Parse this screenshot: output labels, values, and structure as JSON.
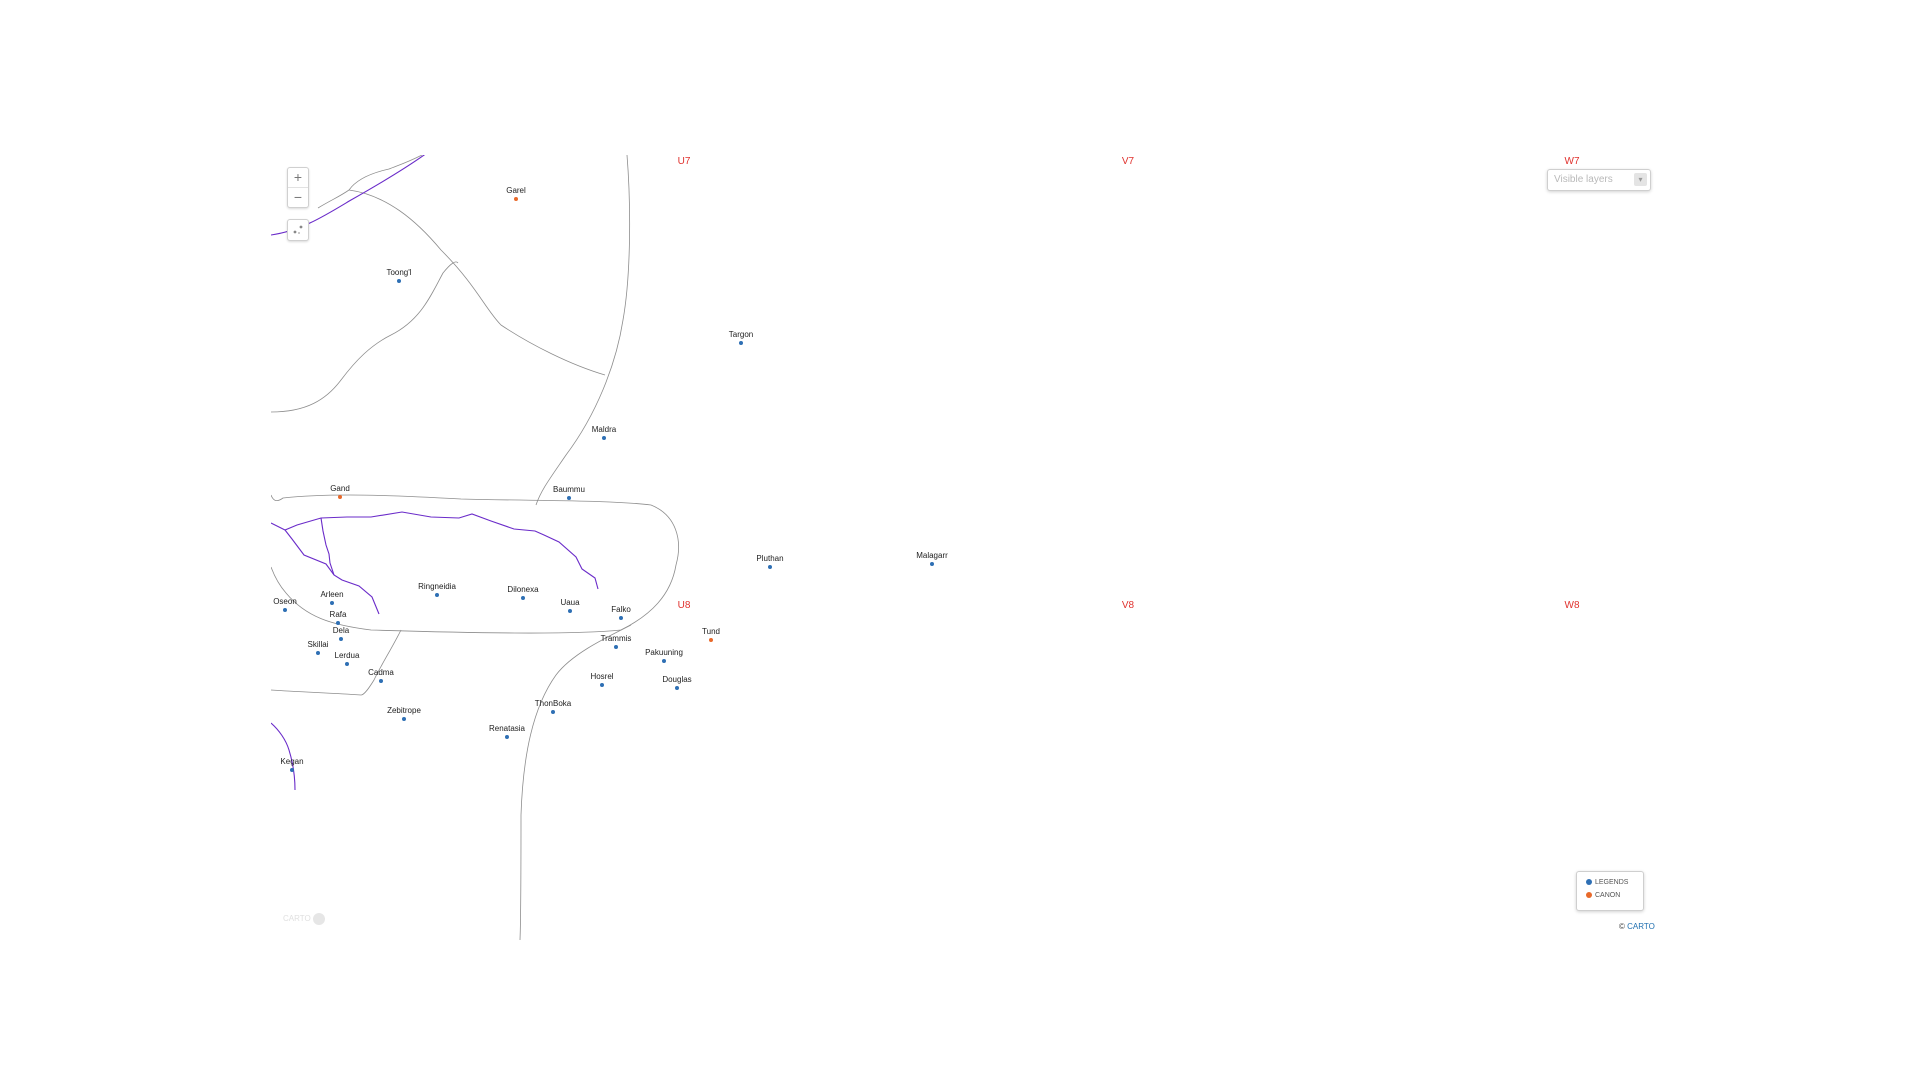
{
  "map": {
    "controls": {
      "zoom_in_label": "+",
      "zoom_out_label": "−",
      "locate_icon": "locate-icon"
    },
    "layers_select": {
      "placeholder": "Visible layers",
      "caret_icon": "chevron-down-icon"
    },
    "legend": {
      "items": [
        {
          "label": "LEGENDS",
          "color": "#2e6fb4"
        },
        {
          "label": "CANON",
          "color": "#e8692a"
        }
      ]
    },
    "attribution": {
      "prefix": "© ",
      "link_text": "CARTO"
    },
    "logo_text": "CARTO",
    "grid_labels": [
      "U7",
      "V7",
      "W7",
      "U8",
      "V8",
      "W8"
    ],
    "colors": {
      "legends": "#2e6fb4",
      "canon": "#e8692a",
      "route": "#6a2bc9",
      "border": "#8d8d8d",
      "grid_label": "#e0322e"
    },
    "places": [
      {
        "name": "Garel",
        "category": "canon"
      },
      {
        "name": "Toong'l",
        "category": "legends"
      },
      {
        "name": "Targon",
        "category": "legends"
      },
      {
        "name": "Maldra",
        "category": "legends"
      },
      {
        "name": "Gand",
        "category": "canon"
      },
      {
        "name": "Baummu",
        "category": "legends"
      },
      {
        "name": "Pluthan",
        "category": "legends"
      },
      {
        "name": "Malagarr",
        "category": "legends"
      },
      {
        "name": "Ringneidia",
        "category": "legends"
      },
      {
        "name": "Dilonexa",
        "category": "legends"
      },
      {
        "name": "Oseon",
        "category": "legends"
      },
      {
        "name": "Arleen",
        "category": "legends"
      },
      {
        "name": "Uaua",
        "category": "legends"
      },
      {
        "name": "Falko",
        "category": "legends"
      },
      {
        "name": "Rafa",
        "category": "legends"
      },
      {
        "name": "Dela",
        "category": "legends"
      },
      {
        "name": "Skillai",
        "category": "legends"
      },
      {
        "name": "Trammis",
        "category": "legends"
      },
      {
        "name": "Tund",
        "category": "canon"
      },
      {
        "name": "Pakuuning",
        "category": "legends"
      },
      {
        "name": "Lerdua",
        "category": "legends"
      },
      {
        "name": "Cadma",
        "category": "legends"
      },
      {
        "name": "Hosrel",
        "category": "legends"
      },
      {
        "name": "Douglas",
        "category": "legends"
      },
      {
        "name": "ThonBoka",
        "category": "legends"
      },
      {
        "name": "Zebitrope",
        "category": "legends"
      },
      {
        "name": "Renatasia",
        "category": "legends"
      },
      {
        "name": "Kegan",
        "category": "legends"
      }
    ]
  }
}
